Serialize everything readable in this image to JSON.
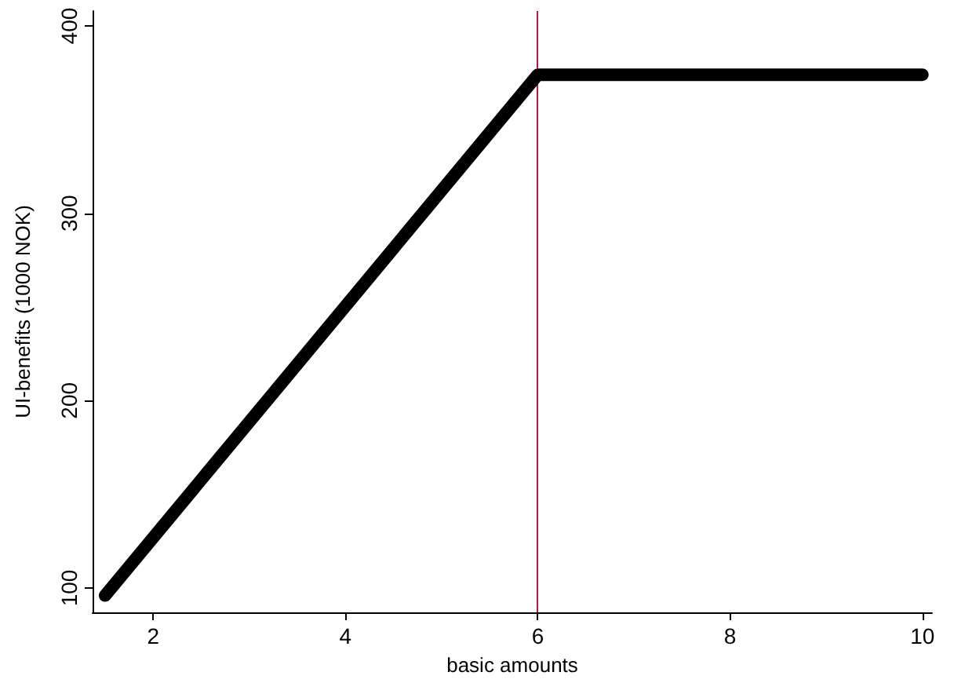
{
  "chart_data": {
    "type": "line",
    "xlabel": "basic amounts",
    "ylabel": "UI-benefits (1000 NOK)",
    "x": [
      1.5,
      6,
      10
    ],
    "series": [
      {
        "color": "#000000",
        "values": [
          96,
          374,
          374
        ]
      }
    ],
    "xlim": [
      1.37,
      10.1
    ],
    "xticks": [
      2,
      4,
      6,
      8,
      10
    ],
    "ylim": [
      87,
      408
    ],
    "yticks": [
      100,
      200,
      300,
      400
    ],
    "ref_lines": [
      {
        "axis": "x",
        "value": 6,
        "color": "#c0143c"
      }
    ],
    "grid": false,
    "line_style": "solid"
  }
}
